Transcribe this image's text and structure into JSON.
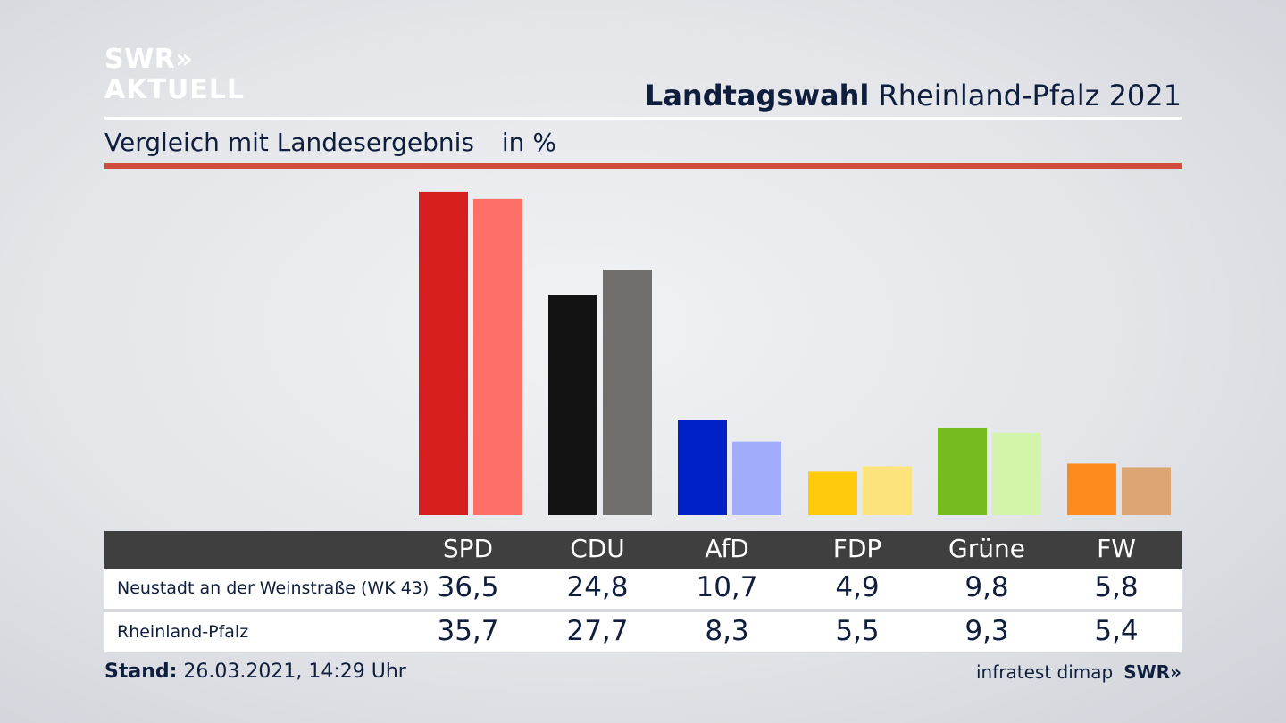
{
  "logo": {
    "line1": "SWR»",
    "line2": "AKTUELL"
  },
  "header": {
    "title_bold": "Landtagswahl",
    "title_rest": "Rheinland-Pfalz 2021"
  },
  "subtitle": {
    "text": "Vergleich mit Landesergebnis",
    "unit": "in %"
  },
  "colors": {
    "accent_rule": "#cf4d3c",
    "table_header": "#3f3f3f"
  },
  "chart_data": {
    "type": "bar",
    "categories": [
      "SPD",
      "CDU",
      "AfD",
      "FDP",
      "Grüne",
      "FW"
    ],
    "series": [
      {
        "name": "Neustadt an der Weinstraße (WK 43)",
        "values": [
          36.5,
          24.8,
          10.7,
          4.9,
          9.8,
          5.8
        ],
        "colors": [
          "#d61e1e",
          "#131313",
          "#0021c8",
          "#ffcb0a",
          "#76bc21",
          "#fd8a1c"
        ]
      },
      {
        "name": "Rheinland-Pfalz",
        "values": [
          35.7,
          27.7,
          8.3,
          5.5,
          9.3,
          5.4
        ],
        "colors": [
          "#fd7068",
          "#706f6d",
          "#9fadfb",
          "#fde37c",
          "#d3f5ab",
          "#dca674"
        ]
      }
    ],
    "grid": false
  },
  "table": {
    "headers": [
      "SPD",
      "CDU",
      "AfD",
      "FDP",
      "Grüne",
      "FW"
    ],
    "rows": [
      {
        "label": "Neustadt an der Weinstraße (WK 43)",
        "values": [
          "36,5",
          "24,8",
          "10,7",
          "4,9",
          "9,8",
          "5,8"
        ]
      },
      {
        "label": "Rheinland-Pfalz",
        "values": [
          "35,7",
          "27,7",
          "8,3",
          "5,5",
          "9,3",
          "5,4"
        ]
      }
    ]
  },
  "footer": {
    "stand_label": "Stand:",
    "stand_value": "26.03.2021, 14:29 Uhr"
  },
  "credit": {
    "source": "infratest dimap",
    "brand": "SWR»"
  }
}
